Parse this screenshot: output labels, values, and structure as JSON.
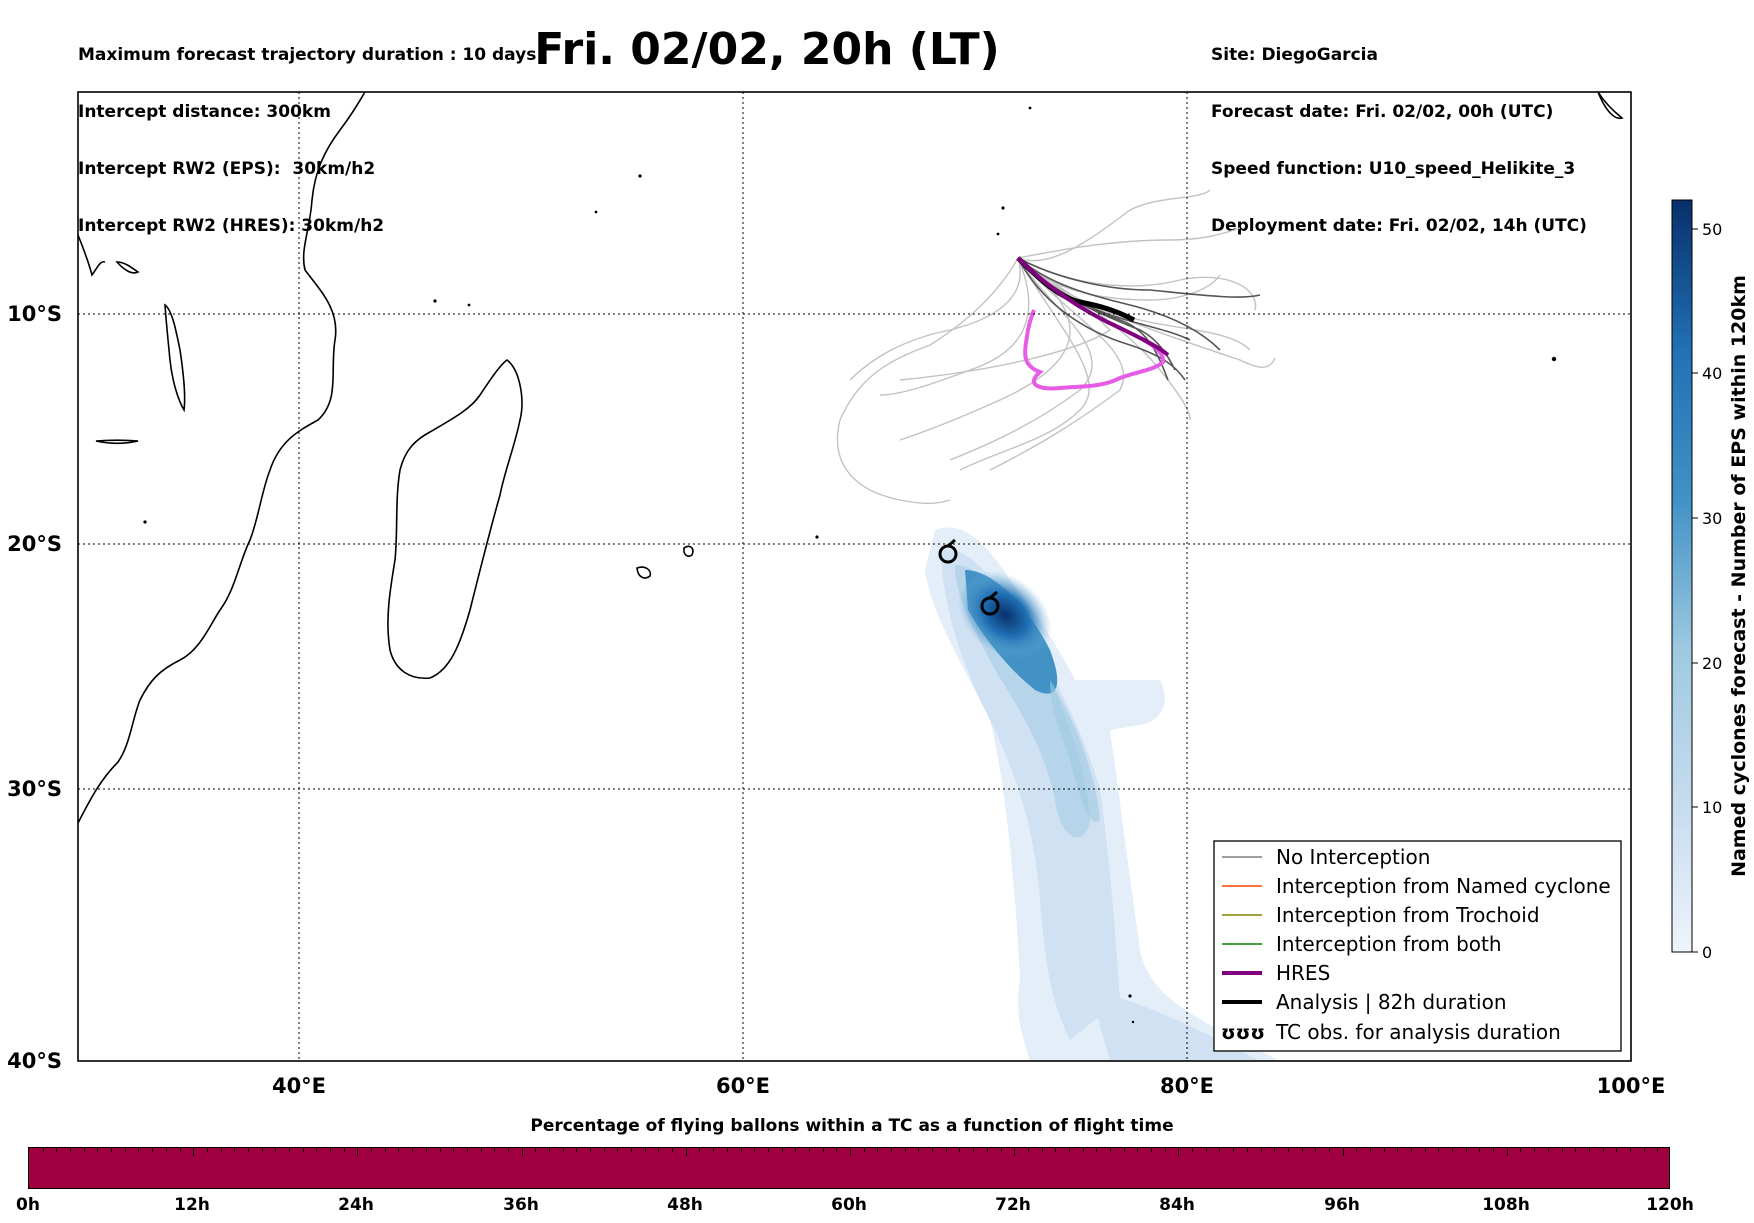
{
  "header": {
    "left_lines": [
      "Maximum forecast trajectory duration : 10 days",
      "Intercept distance: 300km",
      "Intercept RW2 (EPS):  30km/h2",
      "Intercept RW2 (HRES): 30km/h2"
    ],
    "title": "Fri. 02/02, 20h (LT)",
    "right_lines": [
      "Site: DiegoGarcia",
      "Forecast date: Fri. 02/02, 00h (UTC)",
      "Speed function: U10_speed_Helikite_3",
      "Deployment date: Fri. 02/02, 14h (UTC)"
    ]
  },
  "map": {
    "lon_labels": [
      "40°E",
      "60°E",
      "80°E",
      "100°E"
    ],
    "lat_labels": [
      "10°S",
      "20°S",
      "30°S",
      "40°S"
    ],
    "grid": true,
    "colors": {
      "land_outline": "#000000",
      "eps_tracks": "#bdbdbd",
      "hres_track": "#e65ce6",
      "analysis_track": "#000000",
      "density_dark": "#08306b"
    }
  },
  "colorbar": {
    "label": "Named cyclones forecast - Number of EPS within 120km",
    "ticks": [
      "0",
      "10",
      "20",
      "30",
      "40",
      "50"
    ],
    "range": [
      0,
      52
    ]
  },
  "legend": {
    "placement": "lower-right",
    "items": [
      {
        "label": "No Interception",
        "color": "#808080"
      },
      {
        "label": "Interception from Named cyclone",
        "color": "#ff4500"
      },
      {
        "label": "Interception from Trochoid",
        "color": "#808000"
      },
      {
        "label": "Interception from both",
        "color": "#008000"
      },
      {
        "label": "HRES",
        "color": "#800080"
      },
      {
        "label": "Analysis | 82h duration",
        "color": "#000000"
      },
      {
        "label": "TC obs. for analysis duration",
        "color": "#000000",
        "symbol": "ʊʊʊ"
      }
    ]
  },
  "time_bar": {
    "title": "Percentage of flying ballons within a TC as a function of flight time",
    "color": "#a00040",
    "labels": [
      "0h",
      "12h",
      "24h",
      "36h",
      "48h",
      "60h",
      "72h",
      "84h",
      "96h",
      "108h",
      "120h"
    ]
  }
}
